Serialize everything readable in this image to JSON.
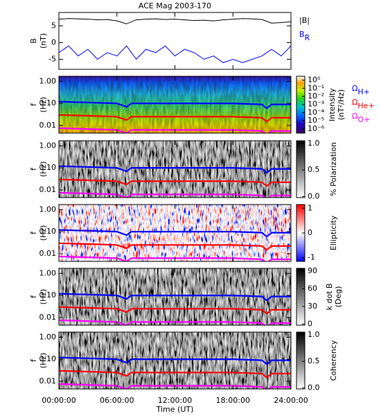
{
  "chart_data": [
    {
      "type": "line",
      "title": "ACE Mag 2003-170",
      "ylabel": [
        "B",
        "(nT)"
      ],
      "xlim": [
        0,
        24
      ],
      "ylim": [
        -8,
        9
      ],
      "yticks": [
        -5,
        0,
        5
      ],
      "x": [
        0,
        1,
        2,
        3,
        4,
        5,
        6,
        7,
        8,
        9,
        10,
        11,
        12,
        13,
        14,
        15,
        16,
        17,
        18,
        19,
        20,
        21,
        22,
        23,
        24
      ],
      "series": [
        {
          "name": "|B|",
          "color": "#000000",
          "values": [
            7.0,
            7.2,
            7.1,
            7.0,
            6.8,
            6.9,
            6.5,
            5.6,
            6.8,
            7.0,
            7.1,
            6.9,
            7.0,
            6.8,
            6.6,
            6.7,
            6.5,
            6.8,
            7.0,
            7.2,
            7.1,
            6.9,
            5.8,
            6.0,
            6.2
          ]
        },
        {
          "name": "B",
          "name_sub": "R",
          "color": "#0000ff",
          "values": [
            -3,
            -1,
            -4,
            -2,
            -5,
            -3,
            -4,
            -1,
            -5,
            -2,
            -3,
            -1,
            -4,
            -2,
            -3,
            -5,
            -4,
            -6,
            -5,
            -6,
            -5,
            -4,
            -2,
            -4,
            -1
          ]
        }
      ]
    },
    {
      "type": "spectrogram",
      "ylabel": [
        "f",
        "(Hz)"
      ],
      "log_y": true,
      "xlim": [
        0,
        24
      ],
      "ylim": [
        0.0045,
        1.7
      ],
      "yticks": [
        {
          "value": 1,
          "label": "1.00"
        },
        {
          "value": 0.1,
          "label": "0.10"
        },
        {
          "value": 0.01,
          "label": "0.01"
        }
      ],
      "colorbar": {
        "label": [
          "Intensity",
          "(nT²/Hz)"
        ],
        "colormap": "rainbow",
        "log": true,
        "lim": [
          3e-07,
          3
        ],
        "ticks": [
          {
            "value": 1,
            "label": "10⁰"
          },
          {
            "value": 0.1,
            "label": "10⁻¹"
          },
          {
            "value": 0.01,
            "label": "10⁻²"
          },
          {
            "value": 0.001,
            "label": "10⁻³"
          },
          {
            "value": 0.0001,
            "label": "10⁻⁴"
          },
          {
            "value": 1e-05,
            "label": "10⁻⁵"
          },
          {
            "value": 1e-06,
            "label": "10⁻⁶"
          }
        ]
      },
      "x": [
        0,
        3,
        6,
        7,
        7.5,
        12,
        18,
        21,
        21.5,
        22,
        24
      ],
      "series": [
        {
          "name": "Ω",
          "name_sub": "H+",
          "color": "#0000ff",
          "values": [
            0.12,
            0.11,
            0.1,
            0.07,
            0.1,
            0.1,
            0.1,
            0.09,
            0.06,
            0.09,
            0.09
          ]
        },
        {
          "name": "Ω",
          "name_sub": "He+",
          "color": "#ff0000",
          "values": [
            0.03,
            0.0275,
            0.025,
            0.0175,
            0.025,
            0.025,
            0.025,
            0.0225,
            0.015,
            0.0225,
            0.0225
          ]
        },
        {
          "name": "Ω",
          "name_sub": "O+",
          "color": "#ff00ff",
          "values": [
            0.0075,
            0.0069,
            0.0063,
            0.0044,
            0.0063,
            0.0063,
            0.0063,
            0.0056,
            0.0038,
            0.0056,
            0.0056
          ]
        }
      ]
    },
    {
      "type": "spectrogram",
      "ylabel": [
        "f",
        "(Hz)"
      ],
      "log_y": true,
      "xlim": [
        0,
        24
      ],
      "ylim": [
        0.0045,
        1.7
      ],
      "yticks": [
        {
          "value": 1,
          "label": "1.00"
        },
        {
          "value": 0.1,
          "label": "0.10"
        },
        {
          "value": 0.01,
          "label": "0.01"
        }
      ],
      "colorbar": {
        "label": [
          "% Polarization"
        ],
        "colormap": "gray",
        "lim": [
          -0.02,
          1.05
        ],
        "ticks": [
          {
            "value": 0,
            "label": "0.0"
          },
          {
            "value": 0.5,
            "label": "0.5"
          },
          {
            "value": 1,
            "label": "1.0"
          }
        ]
      },
      "x": [
        0,
        3,
        6,
        7,
        7.5,
        12,
        18,
        21,
        21.5,
        22,
        24
      ],
      "series": [
        {
          "color": "#0000ff",
          "values": [
            0.12,
            0.11,
            0.1,
            0.07,
            0.1,
            0.1,
            0.1,
            0.09,
            0.06,
            0.09,
            0.09
          ]
        },
        {
          "color": "#ff0000",
          "values": [
            0.03,
            0.0275,
            0.025,
            0.0175,
            0.025,
            0.025,
            0.025,
            0.0225,
            0.015,
            0.0225,
            0.0225
          ]
        },
        {
          "color": "#ff00ff",
          "values": [
            0.0075,
            0.0069,
            0.0063,
            0.0044,
            0.0063,
            0.0063,
            0.0063,
            0.0056,
            0.0038,
            0.0056,
            0.0056
          ]
        }
      ]
    },
    {
      "type": "spectrogram",
      "ylabel": [
        "f",
        "(Hz)"
      ],
      "log_y": true,
      "xlim": [
        0,
        24
      ],
      "ylim": [
        0.0045,
        1.7
      ],
      "yticks": [
        {
          "value": 1,
          "label": "1.00"
        },
        {
          "value": 0.1,
          "label": "0.10"
        },
        {
          "value": 0.01,
          "label": "0.01"
        }
      ],
      "colorbar": {
        "label": [
          "Ellipticity"
        ],
        "colormap": "bwr",
        "lim": [
          -1.15,
          1.15
        ],
        "ticks": [
          -1,
          0,
          1
        ]
      },
      "x": [
        0,
        3,
        6,
        7,
        7.5,
        12,
        18,
        21,
        21.5,
        22,
        24
      ],
      "series": [
        {
          "color": "#0000ff",
          "values": [
            0.12,
            0.11,
            0.1,
            0.07,
            0.1,
            0.1,
            0.1,
            0.09,
            0.06,
            0.09,
            0.09
          ]
        },
        {
          "color": "#ff0000",
          "values": [
            0.03,
            0.0275,
            0.025,
            0.0175,
            0.025,
            0.025,
            0.025,
            0.0225,
            0.015,
            0.0225,
            0.0225
          ]
        },
        {
          "color": "#ff00ff",
          "values": [
            0.0075,
            0.0069,
            0.0063,
            0.0044,
            0.0063,
            0.0063,
            0.0063,
            0.0056,
            0.0038,
            0.0056,
            0.0056
          ]
        }
      ]
    },
    {
      "type": "spectrogram",
      "ylabel": [
        "f",
        "(Hz)"
      ],
      "log_y": true,
      "xlim": [
        0,
        24
      ],
      "ylim": [
        0.0045,
        1.7
      ],
      "yticks": [
        {
          "value": 1,
          "label": "1.00"
        },
        {
          "value": 0.1,
          "label": "0.10"
        },
        {
          "value": 0.01,
          "label": "0.01"
        }
      ],
      "colorbar": {
        "label": [
          "k dot B",
          "(Deg)"
        ],
        "colormap": "gray",
        "lim": [
          -2,
          95
        ],
        "ticks": [
          0,
          30,
          60,
          90
        ]
      },
      "x": [
        0,
        3,
        6,
        7,
        7.5,
        12,
        18,
        21,
        21.5,
        22,
        24
      ],
      "series": [
        {
          "color": "#0000ff",
          "values": [
            0.12,
            0.11,
            0.1,
            0.07,
            0.1,
            0.1,
            0.1,
            0.09,
            0.06,
            0.09,
            0.09
          ]
        },
        {
          "color": "#ff0000",
          "values": [
            0.03,
            0.0275,
            0.025,
            0.0175,
            0.025,
            0.025,
            0.025,
            0.0225,
            0.015,
            0.0225,
            0.0225
          ]
        },
        {
          "color": "#ff00ff",
          "values": [
            0.0075,
            0.0069,
            0.0063,
            0.0044,
            0.0063,
            0.0063,
            0.0063,
            0.0056,
            0.0038,
            0.0056,
            0.0056
          ]
        }
      ]
    },
    {
      "type": "spectrogram",
      "ylabel": [
        "f",
        "(Hz)"
      ],
      "log_y": true,
      "xlim": [
        0,
        24
      ],
      "ylim": [
        0.0045,
        1.7
      ],
      "yticks": [
        {
          "value": 1,
          "label": "1.00"
        },
        {
          "value": 0.1,
          "label": "0.10"
        },
        {
          "value": 0.01,
          "label": "0.01"
        }
      ],
      "colorbar": {
        "label": [
          "Coherency"
        ],
        "colormap": "gray",
        "lim": [
          -0.02,
          1.05
        ],
        "ticks": [
          {
            "value": 0,
            "label": "0.0"
          },
          {
            "value": 0.5,
            "label": "0.5"
          },
          {
            "value": 1,
            "label": "1.0"
          }
        ]
      },
      "x": [
        0,
        3,
        6,
        7,
        7.5,
        12,
        18,
        21,
        21.5,
        22,
        24
      ],
      "series": [
        {
          "color": "#0000ff",
          "values": [
            0.12,
            0.11,
            0.1,
            0.07,
            0.1,
            0.1,
            0.1,
            0.09,
            0.06,
            0.09,
            0.09
          ]
        },
        {
          "color": "#ff0000",
          "values": [
            0.03,
            0.0275,
            0.025,
            0.0175,
            0.025,
            0.025,
            0.025,
            0.0225,
            0.015,
            0.0225,
            0.0225
          ]
        },
        {
          "color": "#ff00ff",
          "values": [
            0.0075,
            0.0069,
            0.0063,
            0.0044,
            0.0063,
            0.0063,
            0.0063,
            0.0056,
            0.0038,
            0.0056,
            0.0056
          ]
        }
      ],
      "xticks": [
        {
          "value": 0,
          "label": "00:00:00"
        },
        {
          "value": 6,
          "label": "06:00:00"
        },
        {
          "value": 12,
          "label": "12:00:00"
        },
        {
          "value": 18,
          "label": "18:00:00"
        },
        {
          "value": 24,
          "label": "24:00:00"
        }
      ],
      "xlabel": "Time (UT)"
    }
  ]
}
